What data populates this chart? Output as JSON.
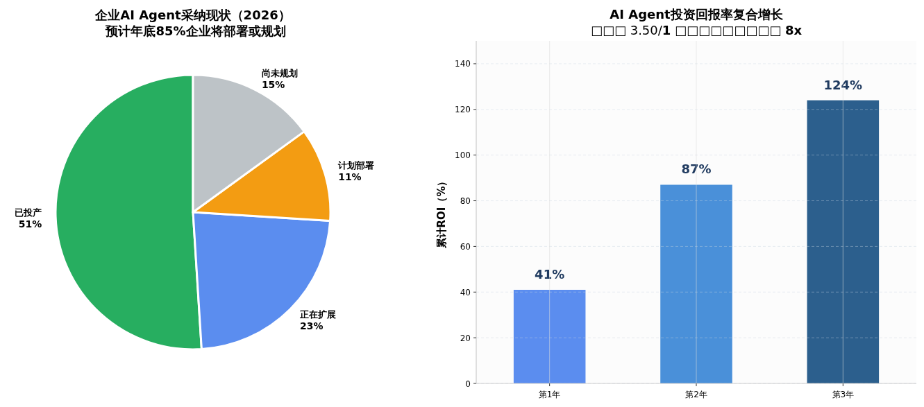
{
  "chart_data": [
    {
      "type": "pie",
      "title": "企业AI Agent采纳现状（2026）",
      "subtitle": "预计年底85%企业将部署或规划",
      "categories": [
        "已投产",
        "正在扩展",
        "计划部署",
        "尚未规划"
      ],
      "values": [
        51,
        23,
        11,
        15
      ],
      "colors": [
        "#27ae60",
        "#5b8def",
        "#f39c12",
        "#bdc3c7"
      ],
      "value_labels": [
        "51%",
        "23%",
        "11%",
        "15%"
      ]
    },
    {
      "type": "bar",
      "title": "AI Agent投资回报率复合增长",
      "subtitle": "□□□ 3.50/**1** □□□□□□□□□ **8x**",
      "ylabel": "累计ROI（%）",
      "categories": [
        "第1年",
        "第2年",
        "第3年"
      ],
      "values": [
        41,
        87,
        124
      ],
      "colors": [
        "#5b8def",
        "#4a90d9",
        "#2c5f8d"
      ],
      "value_labels": [
        "41%",
        "87%",
        "124%"
      ],
      "ylim": [
        0,
        150
      ],
      "yticks": [
        0,
        20,
        40,
        60,
        80,
        100,
        120,
        140
      ],
      "grid": true
    }
  ]
}
